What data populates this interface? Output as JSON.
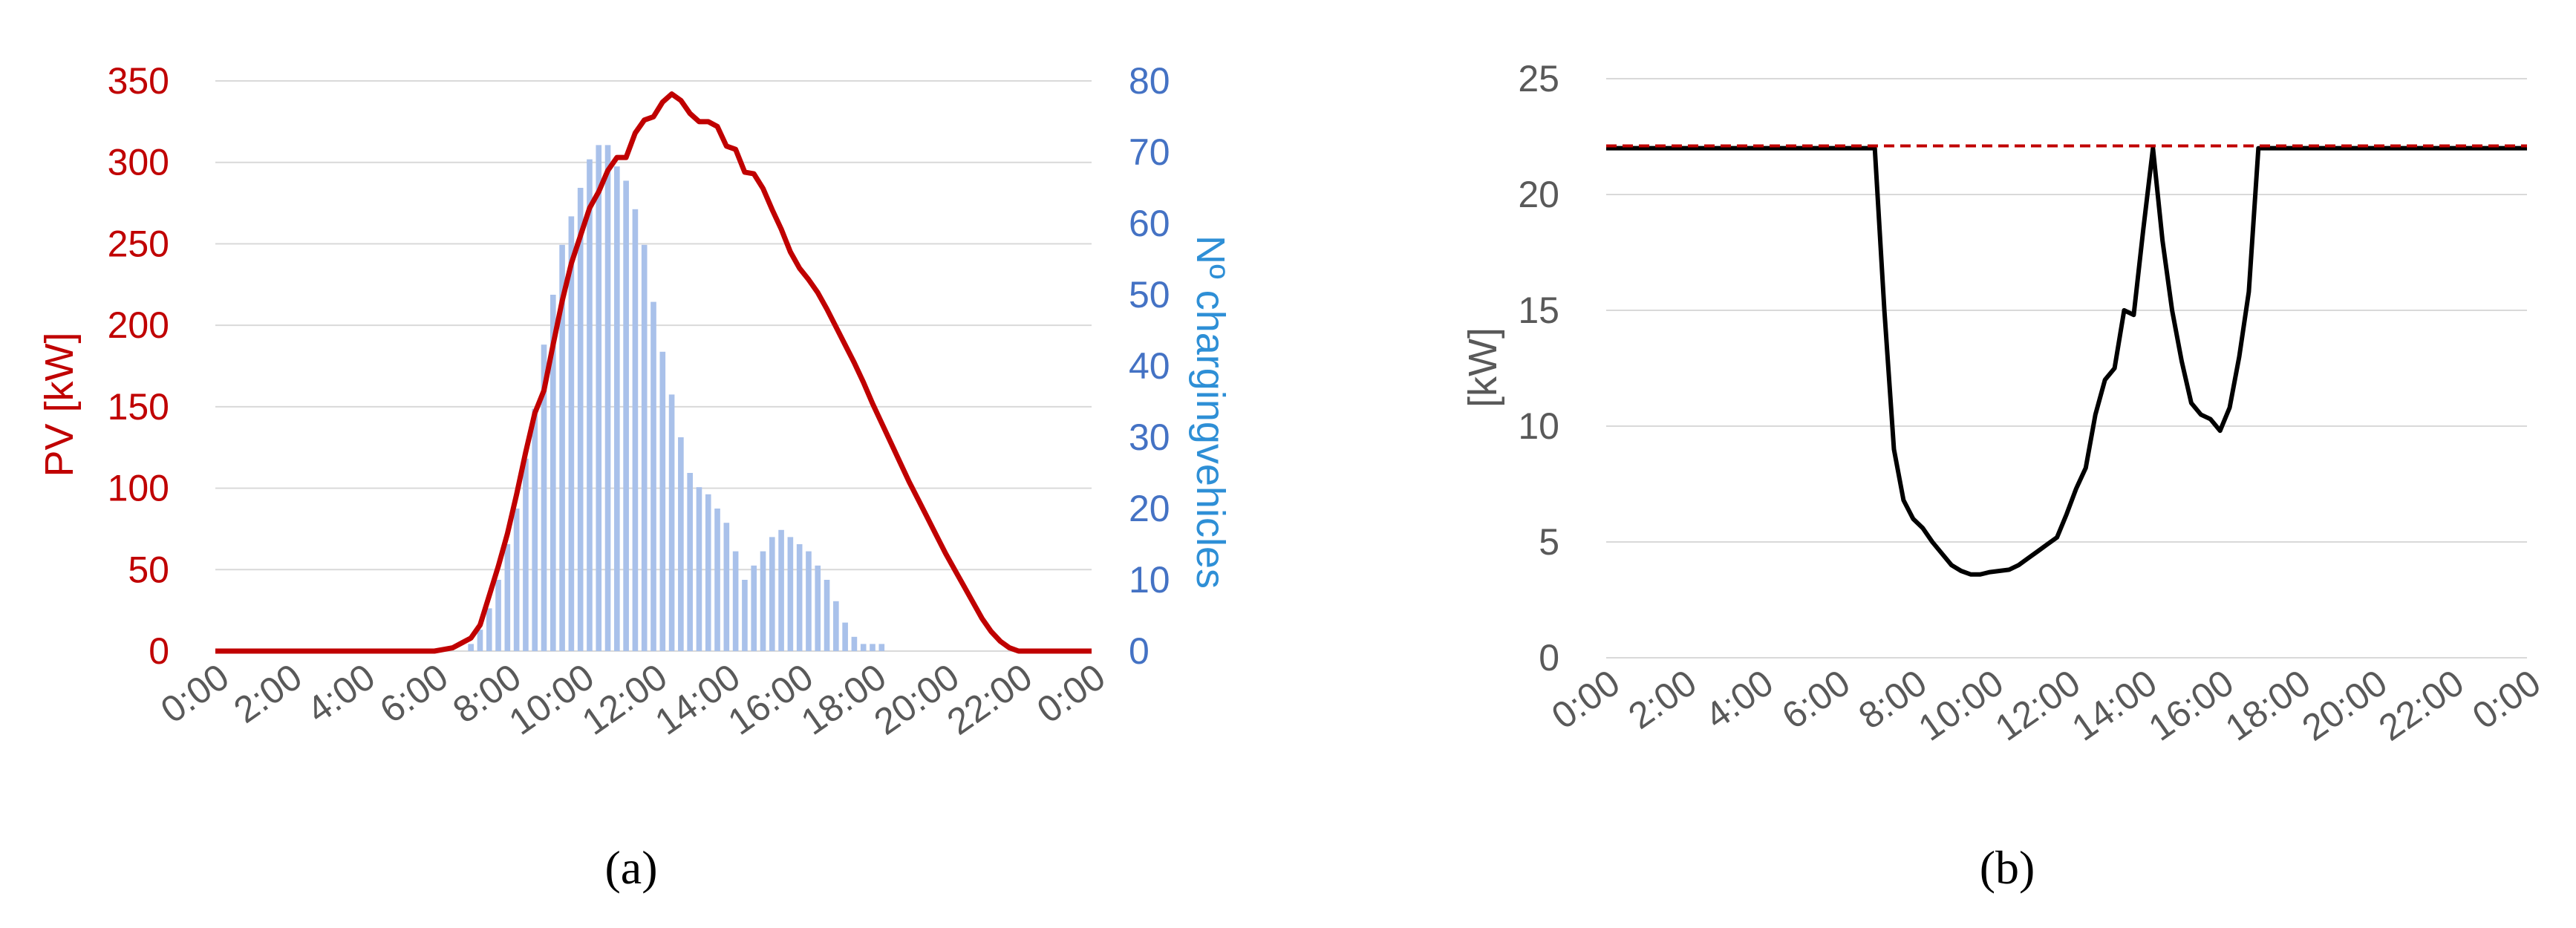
{
  "chart_data": [
    {
      "type": "bar+line",
      "panel_label": "(a)",
      "x_ticks": [
        "0:00",
        "2:00",
        "4:00",
        "6:00",
        "8:00",
        "10:00",
        "12:00",
        "14:00",
        "16:00",
        "18:00",
        "20:00",
        "22:00",
        "0:00"
      ],
      "x_range_hours": [
        0,
        24
      ],
      "y_left": {
        "label": "PV [kW]",
        "ticks": [
          "0",
          "50",
          "100",
          "150",
          "200",
          "250",
          "300",
          "350"
        ],
        "lim": [
          0,
          350
        ],
        "color": "#c00000"
      },
      "y_right": {
        "label": "Nº chargingvehicles",
        "ticks": [
          "0",
          "10",
          "20",
          "30",
          "40",
          "50",
          "60",
          "70",
          "80"
        ],
        "lim": [
          0,
          80
        ],
        "color": "#4472c4",
        "label_color": "#2e8fd6"
      },
      "grid": true,
      "series": [
        {
          "kind": "line",
          "axis": "left",
          "color": "#c00000",
          "points": [
            [
              0,
              0
            ],
            [
              5.5,
              0
            ],
            [
              6.0,
              0
            ],
            [
              6.25,
              1
            ],
            [
              6.5,
              2
            ],
            [
              6.75,
              5
            ],
            [
              7.0,
              8
            ],
            [
              7.25,
              16
            ],
            [
              7.5,
              34
            ],
            [
              7.75,
              52
            ],
            [
              8.0,
              72
            ],
            [
              8.25,
              96
            ],
            [
              8.5,
              122
            ],
            [
              8.75,
              146
            ],
            [
              9.0,
              160
            ],
            [
              9.25,
              188
            ],
            [
              9.5,
              215
            ],
            [
              9.75,
              238
            ],
            [
              10.0,
              255
            ],
            [
              10.25,
              272
            ],
            [
              10.5,
              282
            ],
            [
              10.75,
              295
            ],
            [
              11.0,
              303
            ],
            [
              11.25,
              303
            ],
            [
              11.5,
              318
            ],
            [
              11.75,
              326
            ],
            [
              12.0,
              328
            ],
            [
              12.25,
              337
            ],
            [
              12.5,
              342
            ],
            [
              12.75,
              338
            ],
            [
              13.0,
              330
            ],
            [
              13.25,
              325
            ],
            [
              13.5,
              325
            ],
            [
              13.75,
              322
            ],
            [
              14.0,
              310
            ],
            [
              14.25,
              308
            ],
            [
              14.5,
              294
            ],
            [
              14.75,
              293
            ],
            [
              15.0,
              284
            ],
            [
              15.25,
              271
            ],
            [
              15.5,
              259
            ],
            [
              15.75,
              245
            ],
            [
              16.0,
              235
            ],
            [
              16.25,
              228
            ],
            [
              16.5,
              220
            ],
            [
              16.75,
              210
            ],
            [
              17.0,
              199
            ],
            [
              17.25,
              188
            ],
            [
              17.5,
              177
            ],
            [
              17.75,
              165
            ],
            [
              18.0,
              152
            ],
            [
              18.25,
              140
            ],
            [
              18.5,
              128
            ],
            [
              18.75,
              116
            ],
            [
              19.0,
              104
            ],
            [
              19.25,
              93
            ],
            [
              19.5,
              82
            ],
            [
              19.75,
              71
            ],
            [
              20.0,
              60
            ],
            [
              20.25,
              50
            ],
            [
              20.5,
              40
            ],
            [
              20.75,
              30
            ],
            [
              21.0,
              20
            ],
            [
              21.25,
              12
            ],
            [
              21.5,
              6
            ],
            [
              21.75,
              2
            ],
            [
              22.0,
              0
            ],
            [
              24,
              0
            ]
          ]
        },
        {
          "kind": "bar",
          "axis": "right",
          "color": "#a9c1ea",
          "points": [
            [
              7.0,
              1
            ],
            [
              7.25,
              3
            ],
            [
              7.5,
              6
            ],
            [
              7.75,
              10
            ],
            [
              8.0,
              15
            ],
            [
              8.25,
              20
            ],
            [
              8.5,
              27
            ],
            [
              8.75,
              34
            ],
            [
              9.0,
              43
            ],
            [
              9.25,
              50
            ],
            [
              9.5,
              57
            ],
            [
              9.75,
              61
            ],
            [
              10.0,
              65
            ],
            [
              10.25,
              69
            ],
            [
              10.5,
              71
            ],
            [
              10.75,
              71
            ],
            [
              11.0,
              68
            ],
            [
              11.25,
              66
            ],
            [
              11.5,
              62
            ],
            [
              11.75,
              57
            ],
            [
              12.0,
              49
            ],
            [
              12.25,
              42
            ],
            [
              12.5,
              36
            ],
            [
              12.75,
              30
            ],
            [
              13.0,
              25
            ],
            [
              13.25,
              23
            ],
            [
              13.5,
              22
            ],
            [
              13.75,
              20
            ],
            [
              14.0,
              18
            ],
            [
              14.25,
              14
            ],
            [
              14.5,
              10
            ],
            [
              14.75,
              12
            ],
            [
              15.0,
              14
            ],
            [
              15.25,
              16
            ],
            [
              15.5,
              17
            ],
            [
              15.75,
              16
            ],
            [
              16.0,
              15
            ],
            [
              16.25,
              14
            ],
            [
              16.5,
              12
            ],
            [
              16.75,
              10
            ],
            [
              17.0,
              7
            ],
            [
              17.25,
              4
            ],
            [
              17.5,
              2
            ],
            [
              17.75,
              1
            ],
            [
              18.0,
              1
            ],
            [
              18.25,
              1
            ]
          ]
        }
      ]
    },
    {
      "type": "line",
      "panel_label": "(b)",
      "x_ticks": [
        "0:00",
        "2:00",
        "4:00",
        "6:00",
        "8:00",
        "10:00",
        "12:00",
        "14:00",
        "16:00",
        "18:00",
        "20:00",
        "22:00",
        "0:00"
      ],
      "x_range_hours": [
        0,
        24
      ],
      "y": {
        "label": "[kW]",
        "ticks": [
          "0",
          "5",
          "10",
          "15",
          "20",
          "25"
        ],
        "lim": [
          0,
          25
        ],
        "color": "#595959"
      },
      "grid": true,
      "series": [
        {
          "kind": "line",
          "style": "dashed",
          "color": "#c00000",
          "points": [
            [
              0,
              22.1
            ],
            [
              24,
              22.1
            ]
          ]
        },
        {
          "kind": "line",
          "color": "#000000",
          "points": [
            [
              0,
              22
            ],
            [
              7.0,
              22
            ],
            [
              7.25,
              15
            ],
            [
              7.5,
              9
            ],
            [
              7.75,
              6.8
            ],
            [
              8.0,
              6
            ],
            [
              8.25,
              5.6
            ],
            [
              8.5,
              5
            ],
            [
              8.75,
              4.5
            ],
            [
              9.0,
              4
            ],
            [
              9.25,
              3.75
            ],
            [
              9.5,
              3.6
            ],
            [
              9.75,
              3.6
            ],
            [
              10.0,
              3.7
            ],
            [
              10.25,
              3.75
            ],
            [
              10.5,
              3.8
            ],
            [
              10.75,
              4
            ],
            [
              11.0,
              4.3
            ],
            [
              11.25,
              4.6
            ],
            [
              11.5,
              4.9
            ],
            [
              11.75,
              5.2
            ],
            [
              12.0,
              6.2
            ],
            [
              12.25,
              7.3
            ],
            [
              12.5,
              8.2
            ],
            [
              12.75,
              10.5
            ],
            [
              13.0,
              12
            ],
            [
              13.25,
              12.5
            ],
            [
              13.5,
              15
            ],
            [
              13.75,
              14.8
            ],
            [
              14.0,
              18.5
            ],
            [
              14.25,
              22
            ],
            [
              14.5,
              18
            ],
            [
              14.75,
              15
            ],
            [
              15.0,
              12.8
            ],
            [
              15.25,
              11
            ],
            [
              15.5,
              10.5
            ],
            [
              15.75,
              10.3
            ],
            [
              16.0,
              9.8
            ],
            [
              16.25,
              10.8
            ],
            [
              16.5,
              13
            ],
            [
              16.75,
              15.8
            ],
            [
              17.0,
              22
            ],
            [
              24,
              22
            ]
          ]
        }
      ]
    }
  ]
}
